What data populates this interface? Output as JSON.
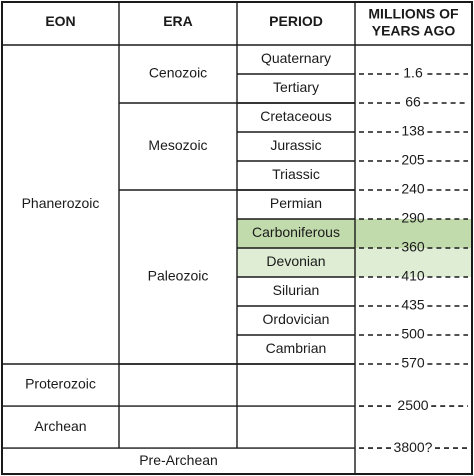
{
  "colors": {
    "line": "#1a1a1a",
    "carboniferous": "#c2dbad",
    "devonian": "#deedd3",
    "text": "#1a1a1a"
  },
  "headers": {
    "eon": "EON",
    "era": "ERA",
    "period": "PERIOD",
    "age_line1": "MILLIONS OF",
    "age_line2": "YEARS AGO"
  },
  "eons": [
    {
      "name": "Phanerozoic",
      "rows": 11
    },
    {
      "name": "Proterozoic",
      "rows": 1.45
    },
    {
      "name": "Archean",
      "rows": 1.45
    }
  ],
  "pre_archean": "Pre-Archean",
  "eras": [
    {
      "name": "Cenozoic",
      "rows": 2
    },
    {
      "name": "Mesozoic",
      "rows": 3
    },
    {
      "name": "Paleozoic",
      "rows": 6
    }
  ],
  "periods": [
    {
      "name": "Quaternary"
    },
    {
      "name": "Tertiary"
    },
    {
      "name": "Cretaceous"
    },
    {
      "name": "Jurassic"
    },
    {
      "name": "Triassic"
    },
    {
      "name": "Permian"
    },
    {
      "name": "Carboniferous",
      "highlight": "carboniferous"
    },
    {
      "name": "Devonian",
      "highlight": "devonian"
    },
    {
      "name": "Silurian"
    },
    {
      "name": "Ordovician"
    },
    {
      "name": "Cambrian"
    }
  ],
  "boundaries": [
    "1.6",
    "66",
    "138",
    "205",
    "240",
    "290",
    "360",
    "410",
    "435",
    "500",
    "570",
    "2500",
    "3800?"
  ]
}
